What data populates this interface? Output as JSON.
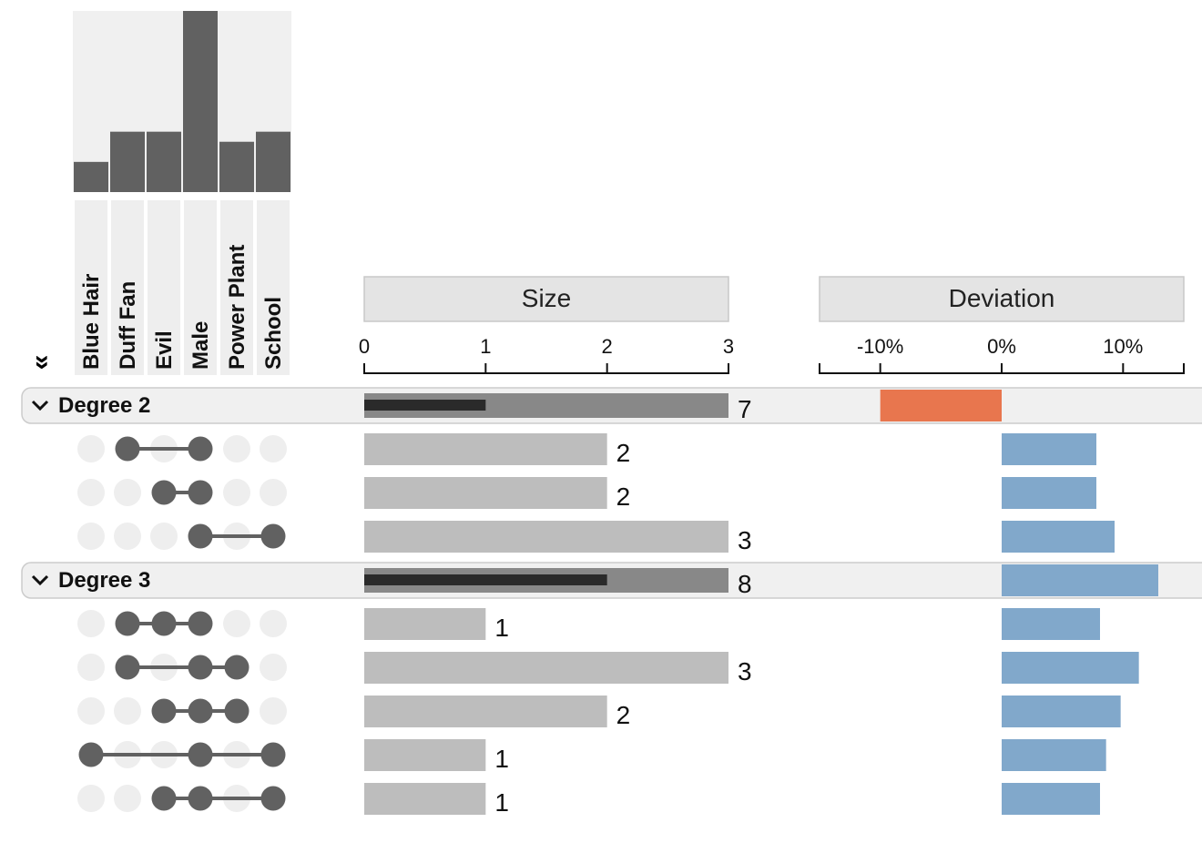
{
  "collapse_all_label": "»",
  "headers": {
    "size": "Size",
    "deviation": "Deviation"
  },
  "colors": {
    "inactive_dot": "#eeeeee",
    "active_dot": "#616161",
    "set_bar": "#616161",
    "set_bar_bg": "#f0f0f0",
    "size_bar": "#bdbdbd",
    "group_bar": "#888888",
    "group_inner_bar": "#2a2a2a",
    "negative_deviation": "#e8764e",
    "positive_deviation": "#81a8cb",
    "group_row_bg": "#f0f0f0",
    "header_bg": "#e4e4e4"
  },
  "chart_data": {
    "type": "bar",
    "sets": [
      "Blue Hair",
      "Duff Fan",
      "Evil",
      "Male",
      "Power Plant",
      "School"
    ],
    "set_sizes": [
      3,
      6,
      6,
      18,
      5,
      6
    ],
    "set_size_axis_max": 18,
    "size_axis": {
      "min": 0,
      "max": 3,
      "ticks": [
        0,
        1,
        2,
        3
      ],
      "tick_labels": [
        "0",
        "1",
        "2",
        "3"
      ]
    },
    "deviation_axis": {
      "min": -0.15,
      "max": 0.15,
      "ticks": [
        -0.1,
        0,
        0.1
      ],
      "tick_labels": [
        "-10%",
        "0%",
        "10%"
      ]
    },
    "groups": [
      {
        "label": "Degree 2",
        "value_label": "7",
        "size_bar": 3,
        "inner_bar": 1,
        "deviation": -0.1,
        "rows": [
          {
            "members": [
              1,
              3
            ],
            "size": 2,
            "value_label": "2",
            "deviation": 0.078
          },
          {
            "members": [
              2,
              3
            ],
            "size": 2,
            "value_label": "2",
            "deviation": 0.078
          },
          {
            "members": [
              3,
              5
            ],
            "size": 3,
            "value_label": "3",
            "deviation": 0.093
          }
        ]
      },
      {
        "label": "Degree 3",
        "value_label": "8",
        "size_bar": 3,
        "inner_bar": 2,
        "deviation": 0.129,
        "rows": [
          {
            "members": [
              1,
              2,
              3
            ],
            "size": 1,
            "value_label": "1",
            "deviation": 0.081
          },
          {
            "members": [
              1,
              3,
              4
            ],
            "size": 3,
            "value_label": "3",
            "deviation": 0.113
          },
          {
            "members": [
              2,
              3,
              4
            ],
            "size": 2,
            "value_label": "2",
            "deviation": 0.098
          },
          {
            "members": [
              0,
              3,
              5
            ],
            "size": 1,
            "value_label": "1",
            "deviation": 0.086
          },
          {
            "members": [
              2,
              3,
              5
            ],
            "size": 1,
            "value_label": "1",
            "deviation": 0.081
          }
        ]
      }
    ]
  }
}
